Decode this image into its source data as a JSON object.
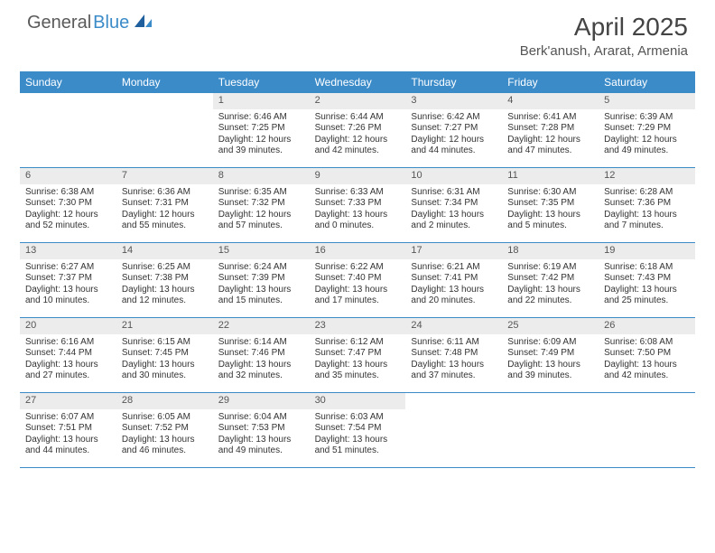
{
  "logo": {
    "part1": "General",
    "part2": "Blue"
  },
  "title": "April 2025",
  "location": "Berk'anush, Ararat, Armenia",
  "colors": {
    "header_bg": "#3b8bc9",
    "header_text": "#ffffff",
    "daynum_bg": "#ececec",
    "border": "#3b8bc9"
  },
  "weekdays": [
    "Sunday",
    "Monday",
    "Tuesday",
    "Wednesday",
    "Thursday",
    "Friday",
    "Saturday"
  ],
  "weeks": [
    [
      null,
      null,
      {
        "n": "1",
        "sunrise": "6:46 AM",
        "sunset": "7:25 PM",
        "daylight": "12 hours and 39 minutes."
      },
      {
        "n": "2",
        "sunrise": "6:44 AM",
        "sunset": "7:26 PM",
        "daylight": "12 hours and 42 minutes."
      },
      {
        "n": "3",
        "sunrise": "6:42 AM",
        "sunset": "7:27 PM",
        "daylight": "12 hours and 44 minutes."
      },
      {
        "n": "4",
        "sunrise": "6:41 AM",
        "sunset": "7:28 PM",
        "daylight": "12 hours and 47 minutes."
      },
      {
        "n": "5",
        "sunrise": "6:39 AM",
        "sunset": "7:29 PM",
        "daylight": "12 hours and 49 minutes."
      }
    ],
    [
      {
        "n": "6",
        "sunrise": "6:38 AM",
        "sunset": "7:30 PM",
        "daylight": "12 hours and 52 minutes."
      },
      {
        "n": "7",
        "sunrise": "6:36 AM",
        "sunset": "7:31 PM",
        "daylight": "12 hours and 55 minutes."
      },
      {
        "n": "8",
        "sunrise": "6:35 AM",
        "sunset": "7:32 PM",
        "daylight": "12 hours and 57 minutes."
      },
      {
        "n": "9",
        "sunrise": "6:33 AM",
        "sunset": "7:33 PM",
        "daylight": "13 hours and 0 minutes."
      },
      {
        "n": "10",
        "sunrise": "6:31 AM",
        "sunset": "7:34 PM",
        "daylight": "13 hours and 2 minutes."
      },
      {
        "n": "11",
        "sunrise": "6:30 AM",
        "sunset": "7:35 PM",
        "daylight": "13 hours and 5 minutes."
      },
      {
        "n": "12",
        "sunrise": "6:28 AM",
        "sunset": "7:36 PM",
        "daylight": "13 hours and 7 minutes."
      }
    ],
    [
      {
        "n": "13",
        "sunrise": "6:27 AM",
        "sunset": "7:37 PM",
        "daylight": "13 hours and 10 minutes."
      },
      {
        "n": "14",
        "sunrise": "6:25 AM",
        "sunset": "7:38 PM",
        "daylight": "13 hours and 12 minutes."
      },
      {
        "n": "15",
        "sunrise": "6:24 AM",
        "sunset": "7:39 PM",
        "daylight": "13 hours and 15 minutes."
      },
      {
        "n": "16",
        "sunrise": "6:22 AM",
        "sunset": "7:40 PM",
        "daylight": "13 hours and 17 minutes."
      },
      {
        "n": "17",
        "sunrise": "6:21 AM",
        "sunset": "7:41 PM",
        "daylight": "13 hours and 20 minutes."
      },
      {
        "n": "18",
        "sunrise": "6:19 AM",
        "sunset": "7:42 PM",
        "daylight": "13 hours and 22 minutes."
      },
      {
        "n": "19",
        "sunrise": "6:18 AM",
        "sunset": "7:43 PM",
        "daylight": "13 hours and 25 minutes."
      }
    ],
    [
      {
        "n": "20",
        "sunrise": "6:16 AM",
        "sunset": "7:44 PM",
        "daylight": "13 hours and 27 minutes."
      },
      {
        "n": "21",
        "sunrise": "6:15 AM",
        "sunset": "7:45 PM",
        "daylight": "13 hours and 30 minutes."
      },
      {
        "n": "22",
        "sunrise": "6:14 AM",
        "sunset": "7:46 PM",
        "daylight": "13 hours and 32 minutes."
      },
      {
        "n": "23",
        "sunrise": "6:12 AM",
        "sunset": "7:47 PM",
        "daylight": "13 hours and 35 minutes."
      },
      {
        "n": "24",
        "sunrise": "6:11 AM",
        "sunset": "7:48 PM",
        "daylight": "13 hours and 37 minutes."
      },
      {
        "n": "25",
        "sunrise": "6:09 AM",
        "sunset": "7:49 PM",
        "daylight": "13 hours and 39 minutes."
      },
      {
        "n": "26",
        "sunrise": "6:08 AM",
        "sunset": "7:50 PM",
        "daylight": "13 hours and 42 minutes."
      }
    ],
    [
      {
        "n": "27",
        "sunrise": "6:07 AM",
        "sunset": "7:51 PM",
        "daylight": "13 hours and 44 minutes."
      },
      {
        "n": "28",
        "sunrise": "6:05 AM",
        "sunset": "7:52 PM",
        "daylight": "13 hours and 46 minutes."
      },
      {
        "n": "29",
        "sunrise": "6:04 AM",
        "sunset": "7:53 PM",
        "daylight": "13 hours and 49 minutes."
      },
      {
        "n": "30",
        "sunrise": "6:03 AM",
        "sunset": "7:54 PM",
        "daylight": "13 hours and 51 minutes."
      },
      null,
      null,
      null
    ]
  ],
  "labels": {
    "sunrise": "Sunrise:",
    "sunset": "Sunset:",
    "daylight": "Daylight:"
  }
}
